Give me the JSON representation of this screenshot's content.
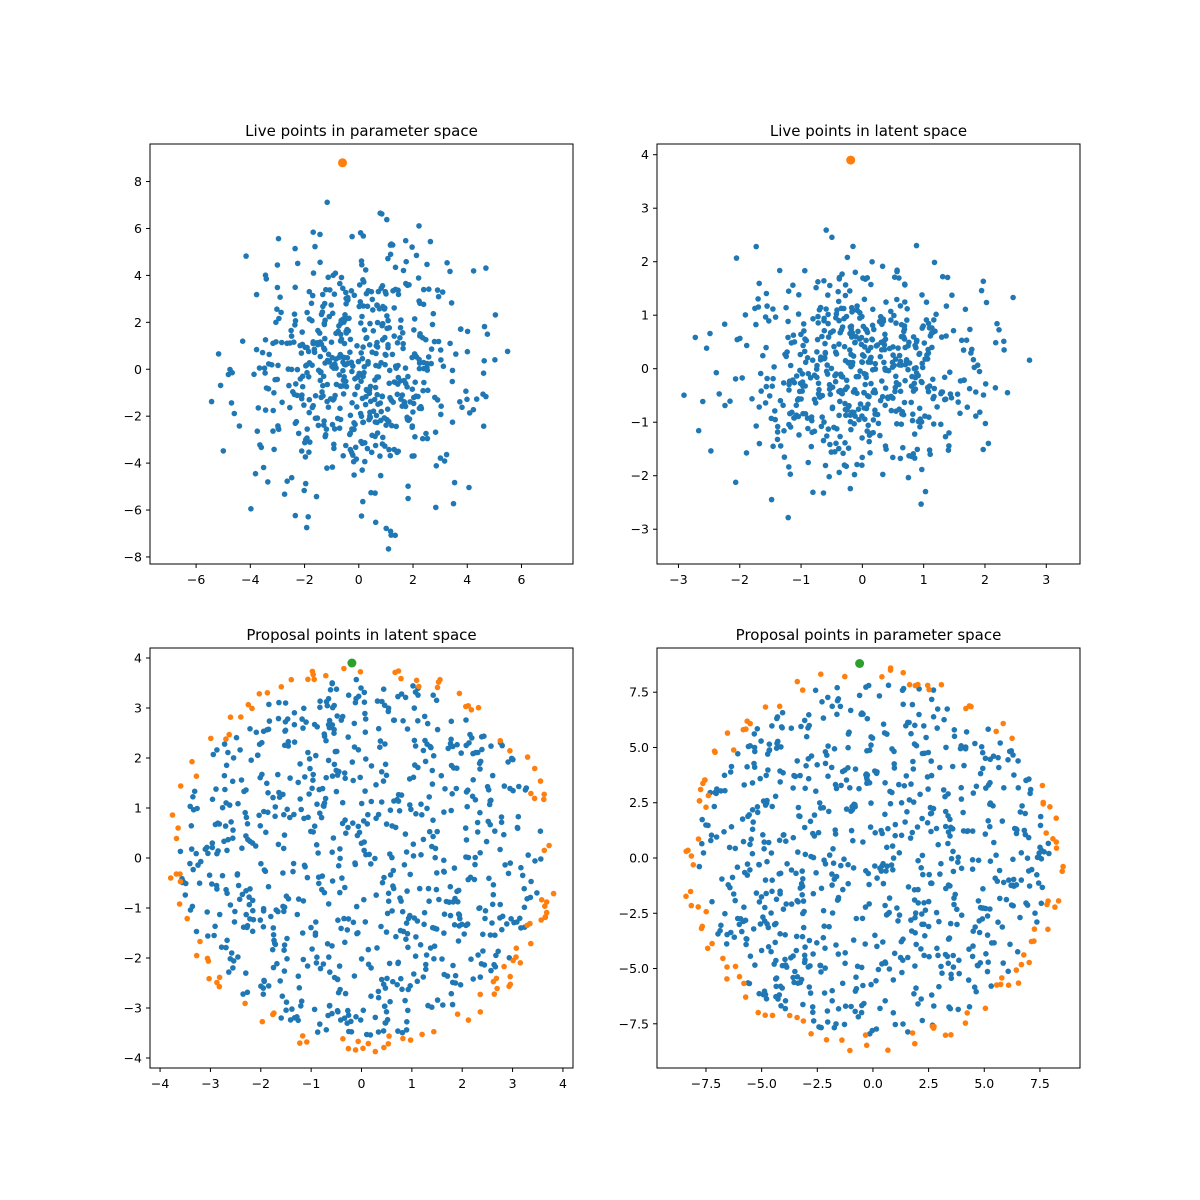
{
  "colors": {
    "blue": "#1f77b4",
    "orange": "#ff7f0e",
    "green": "#2ca02c"
  },
  "chart_data": [
    {
      "type": "scatter",
      "title": "Live points in parameter space",
      "xlim": [
        -7.7,
        7.9
      ],
      "ylim": [
        -8.3,
        9.6
      ],
      "xticks": [
        "-6",
        "-4",
        "-2",
        "0",
        "2",
        "4",
        "6"
      ],
      "yticks": [
        "-8",
        "-6",
        "-4",
        "-2",
        "0",
        "2",
        "4",
        "6",
        "8"
      ],
      "grid": false,
      "series": [
        {
          "color": "blue",
          "distribution": "gaussian",
          "count": 600,
          "spread": [
            2.15,
            2.6
          ],
          "max_radius": 3.0
        },
        {
          "color": "orange",
          "points": [
            [
              -0.6,
              8.8
            ]
          ],
          "size": "large"
        }
      ]
    },
    {
      "type": "scatter",
      "title": "Live points in latent space",
      "xlim": [
        -3.35,
        3.55
      ],
      "ylim": [
        -3.65,
        4.2
      ],
      "xticks": [
        "-3",
        "-2",
        "-1",
        "0",
        "1",
        "2",
        "3"
      ],
      "yticks": [
        "-3",
        "-2",
        "-1",
        "0",
        "1",
        "2",
        "3",
        "4"
      ],
      "grid": false,
      "series": [
        {
          "color": "blue",
          "distribution": "gaussian",
          "count": 600,
          "spread": [
            1.0,
            1.0
          ],
          "max_radius": 3.1
        },
        {
          "color": "orange",
          "points": [
            [
              -0.19,
              3.9
            ]
          ],
          "size": "large"
        }
      ]
    },
    {
      "type": "scatter",
      "title": "Proposal points in latent space",
      "xlim": [
        -4.2,
        4.2
      ],
      "ylim": [
        -4.2,
        4.2
      ],
      "xticks": [
        "-4",
        "-3",
        "-2",
        "-1",
        "0",
        "1",
        "2",
        "3",
        "4"
      ],
      "yticks": [
        "-4",
        "-3",
        "-2",
        "-1",
        "0",
        "1",
        "2",
        "3",
        "4"
      ],
      "grid": false,
      "series": [
        {
          "color": "blue",
          "distribution": "uniform-disk",
          "count": 750,
          "radius": 3.6,
          "scale": [
            1.0,
            1.0
          ]
        },
        {
          "color": "orange",
          "distribution": "ring",
          "count": 110,
          "inner_radius": 3.55,
          "radius": 3.9,
          "scale": [
            1.0,
            1.0
          ]
        },
        {
          "color": "green",
          "points": [
            [
              -0.19,
              3.9
            ]
          ],
          "size": "large"
        }
      ]
    },
    {
      "type": "scatter",
      "title": "Proposal points in parameter space",
      "xlim": [
        -9.7,
        9.3
      ],
      "ylim": [
        -9.5,
        9.5
      ],
      "xticks": [
        "-7.5",
        "-5.0",
        "-2.5",
        "0.0",
        "2.5",
        "5.0",
        "7.5"
      ],
      "yticks": [
        "-7.5",
        "-5.0",
        "-2.5",
        "0.0",
        "2.5",
        "5.0",
        "7.5"
      ],
      "grid": false,
      "series": [
        {
          "color": "blue",
          "distribution": "uniform-disk",
          "count": 750,
          "radius": 3.6,
          "scale": [
            2.2,
            2.25
          ]
        },
        {
          "color": "orange",
          "distribution": "ring",
          "count": 110,
          "inner_radius": 3.55,
          "radius": 3.9,
          "scale": [
            2.2,
            2.25
          ]
        },
        {
          "color": "green",
          "points": [
            [
              -0.6,
              8.8
            ]
          ],
          "size": "large"
        }
      ]
    }
  ]
}
